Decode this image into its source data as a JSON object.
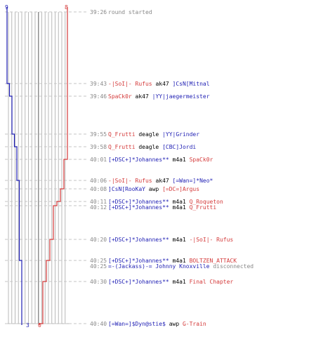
{
  "colors": {
    "blue": "#1f1fb4",
    "red": "#d43a3a",
    "time": "#888888",
    "black": "#000000",
    "grid": "#b8b8b8",
    "grid_dark": "#888888",
    "dash": "#c4c4c4"
  },
  "counts": {
    "blue_start": "9",
    "red_start": "8",
    "blue_end": "3",
    "red_end": "0"
  },
  "events": [
    {
      "time": "39:26",
      "parts": [
        {
          "text": "round started",
          "color": "time"
        }
      ]
    },
    {
      "time": "39:43",
      "parts": [
        {
          "text": "-|SoI|- Rufus",
          "color": "red"
        },
        {
          "text": " ak47 ",
          "color": "black"
        },
        {
          "text": "]CsN[Mitnal",
          "color": "blue"
        }
      ]
    },
    {
      "time": "39:46",
      "parts": [
        {
          "text": "SpaCk0r",
          "color": "red"
        },
        {
          "text": " ak47 ",
          "color": "black"
        },
        {
          "text": "|YY|jaegermeister",
          "color": "blue"
        }
      ]
    },
    {
      "time": "39:55",
      "parts": [
        {
          "text": "Q_Frutti",
          "color": "red"
        },
        {
          "text": " deagle ",
          "color": "black"
        },
        {
          "text": "|YY|Grinder",
          "color": "blue"
        }
      ]
    },
    {
      "time": "39:58",
      "parts": [
        {
          "text": "Q_Frutti",
          "color": "red"
        },
        {
          "text": " deagle ",
          "color": "black"
        },
        {
          "text": "[CBC]Jordi",
          "color": "blue"
        }
      ]
    },
    {
      "time": "40:01",
      "parts": [
        {
          "text": "[+DSC+]*Johannes**",
          "color": "blue"
        },
        {
          "text": " m4a1 ",
          "color": "black"
        },
        {
          "text": "SpaCk0r",
          "color": "red"
        }
      ]
    },
    {
      "time": "40:06",
      "parts": [
        {
          "text": "-|SoI|- Rufus",
          "color": "red"
        },
        {
          "text": " ak47 ",
          "color": "black"
        },
        {
          "text": "[=Wan=]*Neo*",
          "color": "blue"
        }
      ]
    },
    {
      "time": "40:08",
      "parts": [
        {
          "text": "]CsN[RooKaY",
          "color": "blue"
        },
        {
          "text": " awp ",
          "color": "black"
        },
        {
          "text": "[=DC=]Argus",
          "color": "red"
        }
      ]
    },
    {
      "time": "40:11",
      "parts": [
        {
          "text": "[+DSC+]*Johannes**",
          "color": "blue"
        },
        {
          "text": " m4a1 ",
          "color": "black"
        },
        {
          "text": "Q_Roqueton",
          "color": "red"
        }
      ]
    },
    {
      "time": "40:12",
      "parts": [
        {
          "text": "[+DSC+]*Johannes**",
          "color": "blue"
        },
        {
          "text": " m4a1 ",
          "color": "black"
        },
        {
          "text": "Q_Frutti",
          "color": "red"
        }
      ]
    },
    {
      "time": "40:20",
      "parts": [
        {
          "text": "[+DSC+]*Johannes**",
          "color": "blue"
        },
        {
          "text": " m4a1 ",
          "color": "black"
        },
        {
          "text": "-|SoI|- Rufus",
          "color": "red"
        }
      ]
    },
    {
      "time": "40:25",
      "parts": [
        {
          "text": "[+DSC+]*Johannes**",
          "color": "blue"
        },
        {
          "text": " m4a1 ",
          "color": "black"
        },
        {
          "text": "BOLTZEN_ATTACK",
          "color": "red"
        }
      ]
    },
    {
      "time": "40:25",
      "parts": [
        {
          "text": "=-(Jackass)-= Johnny Knoxville",
          "color": "blue"
        },
        {
          "text": " disconnected",
          "color": "time"
        }
      ]
    },
    {
      "time": "40:30",
      "parts": [
        {
          "text": "[+DSC+]*Johannes**",
          "color": "blue"
        },
        {
          "text": " m4a1 ",
          "color": "black"
        },
        {
          "text": "Final Chapter",
          "color": "red"
        }
      ]
    },
    {
      "time": "40:40",
      "parts": [
        {
          "text": "[=Wan=]$Dyn@stie$",
          "color": "blue"
        },
        {
          "text": " awp ",
          "color": "black"
        },
        {
          "text": "G-Train",
          "color": "red"
        }
      ]
    }
  ],
  "chart_data": {
    "type": "line",
    "series": [
      {
        "color": "blue",
        "x": [
          "39:26",
          "39:43",
          "39:46",
          "39:55",
          "39:58",
          "40:06",
          "40:25",
          "40:40"
        ],
        "values": [
          9,
          8,
          7,
          6,
          5,
          4,
          3,
          3
        ]
      },
      {
        "color": "red",
        "x": [
          "39:26",
          "40:01",
          "40:08",
          "40:11",
          "40:12",
          "40:20",
          "40:25",
          "40:30",
          "40:40"
        ],
        "values": [
          8,
          7,
          6,
          5,
          4,
          3,
          2,
          1,
          0
        ]
      }
    ],
    "ylim": [
      0,
      9
    ],
    "grid": true
  }
}
